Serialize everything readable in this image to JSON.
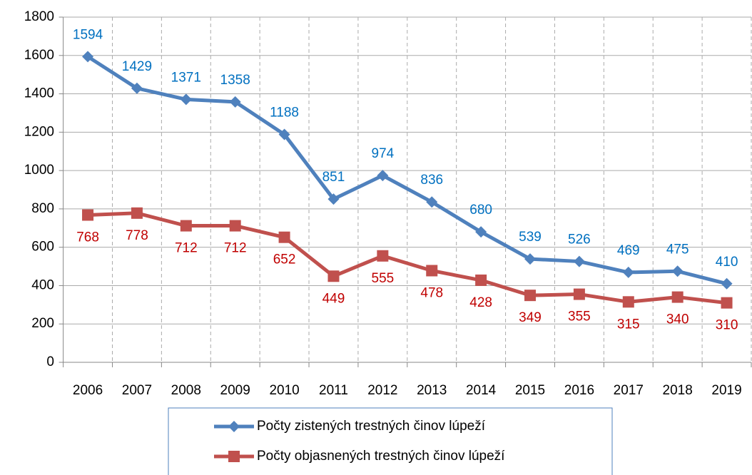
{
  "chart_data": {
    "type": "line",
    "categories": [
      "2006",
      "2007",
      "2008",
      "2009",
      "2010",
      "2011",
      "2012",
      "2013",
      "2014",
      "2015",
      "2016",
      "2017",
      "2018",
      "2019"
    ],
    "series": [
      {
        "name": "Počty zistených trestných činov lúpeží",
        "color": "#4F81BD",
        "label_color": "#0070C0",
        "marker": "diamond",
        "values": [
          1594,
          1429,
          1371,
          1358,
          1188,
          851,
          974,
          836,
          680,
          539,
          526,
          469,
          475,
          410
        ]
      },
      {
        "name": "Počty objasnených trestných činov lúpeží",
        "color": "#C0504D",
        "label_color": "#C00000",
        "marker": "square",
        "values": [
          768,
          778,
          712,
          712,
          652,
          449,
          555,
          478,
          428,
          349,
          355,
          315,
          340,
          310
        ]
      }
    ],
    "ylim": [
      0,
      1800
    ],
    "yticks": [
      0,
      200,
      400,
      600,
      800,
      1000,
      1200,
      1400,
      1600,
      1800
    ],
    "grid": true
  }
}
